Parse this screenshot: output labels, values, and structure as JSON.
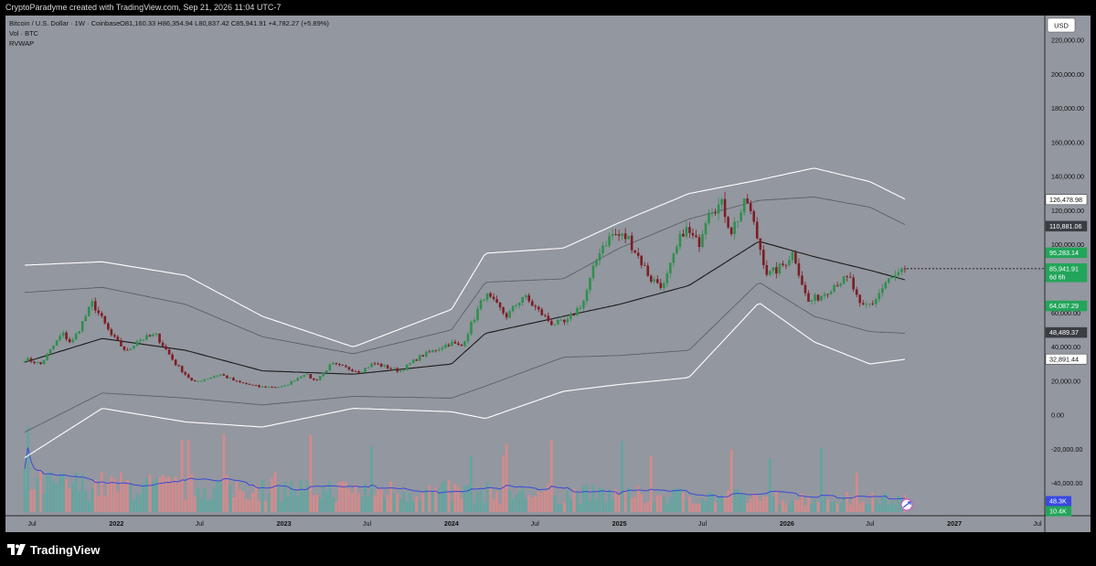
{
  "attribution": "CryptoParadyme created with TradingView.com, Sep 21, 2026 11:04 UTC-7",
  "brand": "TradingView",
  "legend": {
    "symbol": "Bitcoin / U.S. Dollar · 1W · Coinbase",
    "ohlc": "O81,160.33 H86,354.94 L80,837.42 C85,941.91 +4,782.27 (+5.89%)",
    "vol": "Vol · BTC",
    "rvwap": "RVWAP"
  },
  "currency": "USD",
  "colors": {
    "background": "#93979f",
    "up": "#2f8f4e",
    "down": "#7e1c24",
    "vol_up": "#5fa6a0",
    "vol_down": "#d98a8a",
    "vwap": "#1a1a1a",
    "band1": "#555a62",
    "band2": "#ffffff",
    "vol_ma": "#3b49d8",
    "price_tag": "#22a55a"
  },
  "chart_data": {
    "type": "candlestick",
    "timeframe": "1W",
    "x_ticks": [
      "Jul",
      "2022",
      "Jul",
      "2023",
      "Jul",
      "2024",
      "Jul",
      "2025",
      "Jul",
      "2026",
      "Jul",
      "2027",
      "Jul"
    ],
    "x_tick_dates": [
      "2021-07-01",
      "2022-01-01",
      "2022-07-01",
      "2023-01-01",
      "2023-07-01",
      "2024-01-01",
      "2024-07-01",
      "2025-01-01",
      "2025-07-01",
      "2026-01-01",
      "2026-07-01",
      "2027-01-01",
      "2027-07-01"
    ],
    "y_ticks": [
      "220,000.00",
      "200,000.00",
      "180,000.00",
      "160,000.00",
      "140,000.00",
      "120,000.00",
      "100,000.00",
      "80,000.00",
      "60,000.00",
      "40,000.00",
      "20,000.00",
      "0.00",
      "-20,000.00",
      "-40,000.00"
    ],
    "y_tick_values": [
      220000,
      200000,
      180000,
      160000,
      140000,
      120000,
      100000,
      80000,
      60000,
      40000,
      20000,
      0,
      -20000,
      -40000
    ],
    "ylim": [
      -60000,
      232000
    ],
    "price_labels": [
      {
        "value": 126478.98,
        "text": "126,478.98",
        "style": "white"
      },
      {
        "value": 110881.06,
        "text": "110,881.06",
        "style": "dark"
      },
      {
        "value": 95283.14,
        "text": "95,283.14",
        "style": "green"
      },
      {
        "value": 85941.91,
        "text": "85,941.91",
        "sub": "6d 6h",
        "style": "green"
      },
      {
        "value": 64087.29,
        "text": "64,087.29",
        "style": "green"
      },
      {
        "value": 48489.37,
        "text": "48,489.37",
        "style": "dark"
      },
      {
        "value": 32891.44,
        "text": "32,891.44",
        "style": "white"
      }
    ],
    "volume_labels": [
      {
        "text": "48.3K",
        "style": "blue"
      },
      {
        "text": "10.4K",
        "style": "green"
      }
    ],
    "price_keypoints": [
      [
        "2021-06-15",
        33000
      ],
      [
        "2021-07-20",
        30000
      ],
      [
        "2021-09-05",
        48000
      ],
      [
        "2021-09-25",
        42000
      ],
      [
        "2021-11-10",
        66000
      ],
      [
        "2021-12-20",
        47000
      ],
      [
        "2022-01-24",
        37000
      ],
      [
        "2022-02-15",
        44000
      ],
      [
        "2022-03-28",
        47000
      ],
      [
        "2022-05-10",
        30000
      ],
      [
        "2022-06-18",
        19000
      ],
      [
        "2022-08-15",
        24000
      ],
      [
        "2022-09-20",
        19500
      ],
      [
        "2022-11-10",
        16500
      ],
      [
        "2022-12-31",
        16600
      ],
      [
        "2023-02-15",
        24500
      ],
      [
        "2023-03-10",
        20000
      ],
      [
        "2023-04-15",
        30000
      ],
      [
        "2023-06-15",
        25500
      ],
      [
        "2023-07-15",
        30500
      ],
      [
        "2023-09-10",
        25800
      ],
      [
        "2023-10-25",
        34500
      ],
      [
        "2023-12-31",
        42500
      ],
      [
        "2024-01-22",
        40000
      ],
      [
        "2024-03-14",
        71000
      ],
      [
        "2024-05-01",
        58000
      ],
      [
        "2024-06-05",
        70000
      ],
      [
        "2024-08-05",
        54000
      ],
      [
        "2024-09-07",
        54000
      ],
      [
        "2024-10-15",
        67000
      ],
      [
        "2024-11-20",
        98000
      ],
      [
        "2024-12-17",
        106000
      ],
      [
        "2025-01-20",
        104000
      ],
      [
        "2025-03-10",
        80000
      ],
      [
        "2025-04-08",
        76000
      ],
      [
        "2025-05-22",
        110000
      ],
      [
        "2025-06-22",
        100000
      ],
      [
        "2025-07-14",
        122000
      ],
      [
        "2025-08-14",
        123000
      ],
      [
        "2025-09-01",
        108000
      ],
      [
        "2025-10-06",
        126000
      ],
      [
        "2025-11-20",
        82000
      ],
      [
        "2025-12-20",
        87000
      ],
      [
        "2026-01-15",
        96000
      ],
      [
        "2026-02-15",
        66000
      ],
      [
        "2026-03-15",
        70000
      ],
      [
        "2026-04-20",
        78000
      ],
      [
        "2026-05-18",
        80000
      ],
      [
        "2026-06-10",
        63000
      ],
      [
        "2026-07-08",
        66000
      ],
      [
        "2026-08-05",
        78000
      ],
      [
        "2026-09-21",
        85942
      ]
    ],
    "vwap": [
      [
        "2021-06-15",
        31000
      ],
      [
        "2021-12-01",
        45000
      ],
      [
        "2022-06-01",
        38000
      ],
      [
        "2022-11-15",
        26000
      ],
      [
        "2023-06-01",
        24000
      ],
      [
        "2024-01-01",
        30000
      ],
      [
        "2024-03-15",
        48000
      ],
      [
        "2024-09-01",
        58000
      ],
      [
        "2025-01-01",
        65000
      ],
      [
        "2025-06-01",
        76000
      ],
      [
        "2025-11-01",
        102000
      ],
      [
        "2026-03-01",
        93000
      ],
      [
        "2026-07-01",
        85000
      ],
      [
        "2026-09-21",
        79000
      ]
    ],
    "band1_upper": [
      [
        "2021-06-15",
        72000
      ],
      [
        "2021-12-01",
        75000
      ],
      [
        "2022-06-01",
        65000
      ],
      [
        "2022-11-15",
        46000
      ],
      [
        "2023-06-01",
        36000
      ],
      [
        "2024-01-01",
        50000
      ],
      [
        "2024-03-15",
        78000
      ],
      [
        "2024-09-01",
        80000
      ],
      [
        "2025-01-01",
        98000
      ],
      [
        "2025-06-01",
        115000
      ],
      [
        "2025-11-01",
        126000
      ],
      [
        "2026-03-01",
        128000
      ],
      [
        "2026-07-01",
        122000
      ],
      [
        "2026-09-21",
        111000
      ]
    ],
    "band1_lower": [
      [
        "2021-06-15",
        -10000
      ],
      [
        "2021-12-01",
        13000
      ],
      [
        "2022-06-01",
        10000
      ],
      [
        "2022-11-15",
        6000
      ],
      [
        "2023-06-01",
        11000
      ],
      [
        "2024-01-01",
        10000
      ],
      [
        "2024-03-15",
        17000
      ],
      [
        "2024-09-01",
        34000
      ],
      [
        "2025-01-01",
        35000
      ],
      [
        "2025-06-01",
        38000
      ],
      [
        "2025-11-01",
        78000
      ],
      [
        "2026-03-01",
        58000
      ],
      [
        "2026-07-01",
        49000
      ],
      [
        "2026-09-21",
        48000
      ]
    ],
    "band2_upper": [
      [
        "2021-06-15",
        88000
      ],
      [
        "2021-12-01",
        90000
      ],
      [
        "2022-06-01",
        82000
      ],
      [
        "2022-11-15",
        58000
      ],
      [
        "2023-06-01",
        40000
      ],
      [
        "2024-01-01",
        62000
      ],
      [
        "2024-03-15",
        95000
      ],
      [
        "2024-09-01",
        98000
      ],
      [
        "2025-01-01",
        113000
      ],
      [
        "2025-06-01",
        130000
      ],
      [
        "2025-11-01",
        138000
      ],
      [
        "2026-03-01",
        145000
      ],
      [
        "2026-07-01",
        137000
      ],
      [
        "2026-09-21",
        126000
      ]
    ],
    "band2_lower": [
      [
        "2021-06-15",
        -25000
      ],
      [
        "2021-12-01",
        4000
      ],
      [
        "2022-06-01",
        -4000
      ],
      [
        "2022-11-15",
        -7000
      ],
      [
        "2023-06-01",
        4000
      ],
      [
        "2024-01-01",
        2000
      ],
      [
        "2024-03-15",
        -2000
      ],
      [
        "2024-09-01",
        14000
      ],
      [
        "2025-01-01",
        18000
      ],
      [
        "2025-06-01",
        22000
      ],
      [
        "2025-11-01",
        66000
      ],
      [
        "2026-03-01",
        43000
      ],
      [
        "2026-07-01",
        30000
      ],
      [
        "2026-09-21",
        33000
      ]
    ],
    "current_price": 85941.91
  }
}
